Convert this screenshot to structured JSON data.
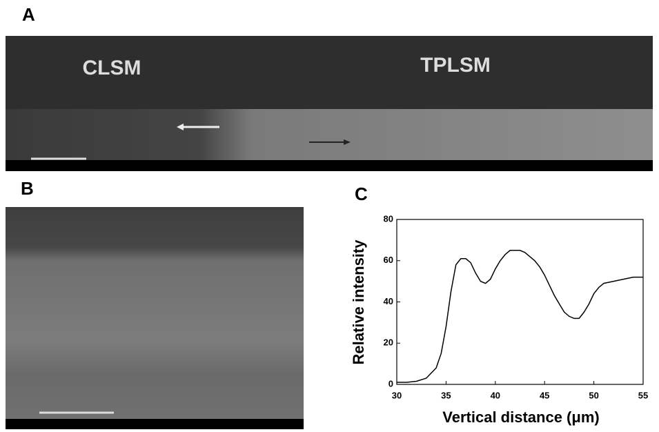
{
  "panels": [
    {
      "label": "A",
      "texts": [
        "CLSM",
        "TPLSM"
      ]
    },
    {
      "label": "B"
    },
    {
      "label": "C"
    }
  ],
  "chart_data": {
    "type": "line",
    "x_label": "Vertical distance (μm)",
    "y_label": "Relative intensity",
    "x": [
      30,
      31,
      32,
      33,
      34,
      34.5,
      35,
      35.5,
      36,
      36.5,
      37,
      37.5,
      38,
      38.5,
      39,
      39.5,
      40,
      40.5,
      41,
      41.5,
      42,
      42.5,
      43,
      43.5,
      44,
      44.5,
      45,
      45.5,
      46,
      46.5,
      47,
      47.5,
      48,
      48.5,
      49,
      49.5,
      50,
      50.5,
      51,
      52,
      53,
      54,
      55
    ],
    "values": [
      1,
      1,
      1.5,
      3,
      8,
      15,
      28,
      45,
      58,
      61,
      61,
      59,
      54,
      50,
      49,
      51,
      56,
      60,
      63,
      65,
      65,
      65,
      64,
      62,
      60,
      57,
      53,
      48,
      43,
      39,
      35,
      33,
      32,
      32,
      35,
      39,
      44,
      47,
      49,
      50,
      51,
      52,
      52
    ],
    "color": "#000000",
    "xlim": [
      30,
      55
    ],
    "ylim": [
      0,
      80
    ],
    "xticks": [
      30,
      35,
      40,
      45,
      50,
      55
    ],
    "yticks": [
      0,
      20,
      40,
      60,
      80
    ]
  }
}
